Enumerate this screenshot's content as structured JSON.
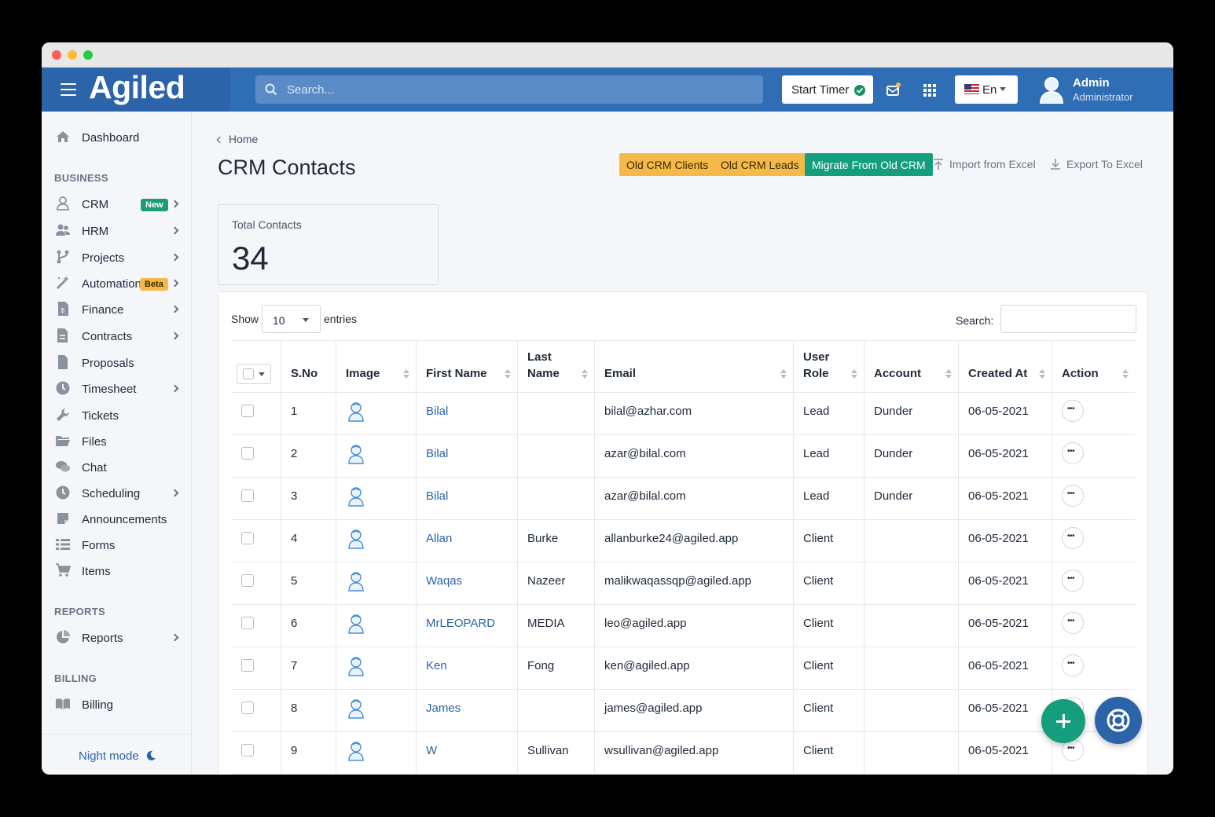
{
  "app": {
    "logo": "Agiled"
  },
  "topbar": {
    "search_placeholder": "Search...",
    "timer_label": "Start Timer",
    "language": "En",
    "user_name": "Admin",
    "user_role": "Administrator"
  },
  "sidebar": {
    "dashboard": "Dashboard",
    "sections": {
      "business": "BUSINESS",
      "reports": "REPORTS",
      "billing": "BILLING"
    },
    "items": [
      {
        "label": "CRM",
        "icon": "user-icon",
        "badge": "New",
        "has_submenu": true
      },
      {
        "label": "HRM",
        "icon": "users-icon",
        "has_submenu": true
      },
      {
        "label": "Projects",
        "icon": "branch-icon",
        "has_submenu": true
      },
      {
        "label": "Automation",
        "icon": "magic-wand-icon",
        "badge": "Beta",
        "has_submenu": true
      },
      {
        "label": "Finance",
        "icon": "invoice-icon",
        "has_submenu": true
      },
      {
        "label": "Contracts",
        "icon": "contract-icon",
        "has_submenu": true
      },
      {
        "label": "Proposals",
        "icon": "file-icon",
        "has_submenu": false
      },
      {
        "label": "Timesheet",
        "icon": "clock-icon",
        "has_submenu": true
      },
      {
        "label": "Tickets",
        "icon": "wrench-icon",
        "has_submenu": false
      },
      {
        "label": "Files",
        "icon": "folder-icon",
        "has_submenu": false
      },
      {
        "label": "Chat",
        "icon": "chat-icon",
        "has_submenu": false
      },
      {
        "label": "Scheduling",
        "icon": "clock-icon",
        "has_submenu": true
      },
      {
        "label": "Announcements",
        "icon": "announcement-icon",
        "has_submenu": false
      },
      {
        "label": "Forms",
        "icon": "list-icon",
        "has_submenu": false
      },
      {
        "label": "Items",
        "icon": "cart-icon",
        "has_submenu": false
      }
    ],
    "reports_item": "Reports",
    "billing_item": "Billing",
    "night_mode": "Night mode"
  },
  "page": {
    "breadcrumb": "Home",
    "title": "CRM Contacts",
    "buttons": {
      "old_clients": "Old CRM Clients",
      "old_leads": "Old CRM Leads",
      "migrate": "Migrate From Old CRM",
      "import": "Import from Excel",
      "export": "Export To Excel"
    },
    "stat": {
      "label": "Total Contacts",
      "value": "34"
    }
  },
  "table": {
    "show_label": "Show",
    "page_length": "10",
    "entries_label": "entries",
    "search_label": "Search:",
    "columns": [
      "S.No",
      "Image",
      "First Name",
      "Last Name",
      "Email",
      "User Role",
      "Account",
      "Created At",
      "Action"
    ],
    "rows": [
      {
        "sno": "1",
        "first": "Bilal",
        "last": "",
        "email": "bilal@azhar.com",
        "role": "Lead",
        "account": "Dunder",
        "created": "06-05-2021"
      },
      {
        "sno": "2",
        "first": "Bilal",
        "last": "",
        "email": "azar@bilal.com",
        "role": "Lead",
        "account": "Dunder",
        "created": "06-05-2021"
      },
      {
        "sno": "3",
        "first": "Bilal",
        "last": "",
        "email": "azar@bilal.com",
        "role": "Lead",
        "account": "Dunder",
        "created": "06-05-2021"
      },
      {
        "sno": "4",
        "first": "Allan",
        "last": "Burke",
        "email": "allanburke24@agiled.app",
        "role": "Client",
        "account": "",
        "created": "06-05-2021"
      },
      {
        "sno": "5",
        "first": "Waqas",
        "last": "Nazeer",
        "email": "malikwaqassqp@agiled.app",
        "role": "Client",
        "account": "",
        "created": "06-05-2021"
      },
      {
        "sno": "6",
        "first": "MrLEOPARD",
        "last": "MEDIA",
        "email": "leo@agiled.app",
        "role": "Client",
        "account": "",
        "created": "06-05-2021"
      },
      {
        "sno": "7",
        "first": "Ken",
        "last": "Fong",
        "email": "ken@agiled.app",
        "role": "Client",
        "account": "",
        "created": "06-05-2021"
      },
      {
        "sno": "8",
        "first": "James",
        "last": "",
        "email": "james@agiled.app",
        "role": "Client",
        "account": "",
        "created": "06-05-2021"
      },
      {
        "sno": "9",
        "first": "W",
        "last": "Sullivan",
        "email": "wsullivan@agiled.app",
        "role": "Client",
        "account": "",
        "created": "06-05-2021"
      }
    ]
  },
  "colors": {
    "brand_blue": "#2f6db5",
    "accent_green": "#159e7d",
    "accent_yellow": "#f5b94a",
    "link_blue": "#2b64a8"
  }
}
